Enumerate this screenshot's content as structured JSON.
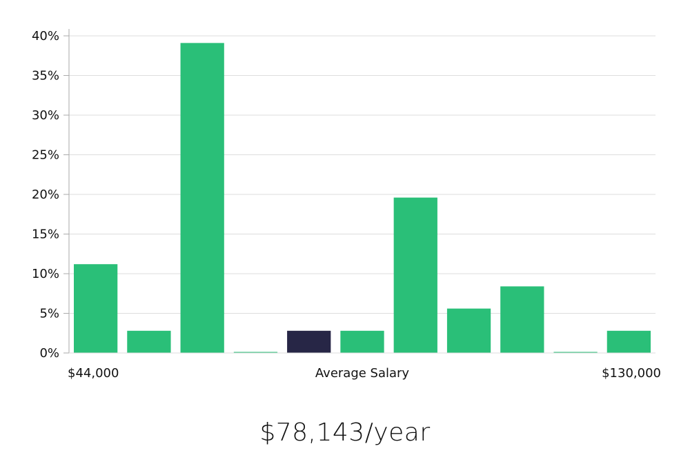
{
  "chart_data": {
    "type": "bar",
    "ylim": [
      0,
      40
    ],
    "y_ticks": [
      0,
      5,
      10,
      15,
      20,
      25,
      30,
      35,
      40
    ],
    "y_tick_suffix": "%",
    "grid": true,
    "values": [
      11.2,
      2.8,
      39.1,
      0,
      2.8,
      2.8,
      19.6,
      5.6,
      8.4,
      0,
      2.8
    ],
    "highlight_index": 4,
    "colors": {
      "bar": "#2abf78",
      "highlight": "#272646",
      "grid": "#dddddd",
      "axis": "#aaaaaa"
    },
    "x_label_left": "$44,000",
    "x_label_center": "Average Salary",
    "x_label_right": "$130,000"
  },
  "average_salary": "$78,143/year"
}
